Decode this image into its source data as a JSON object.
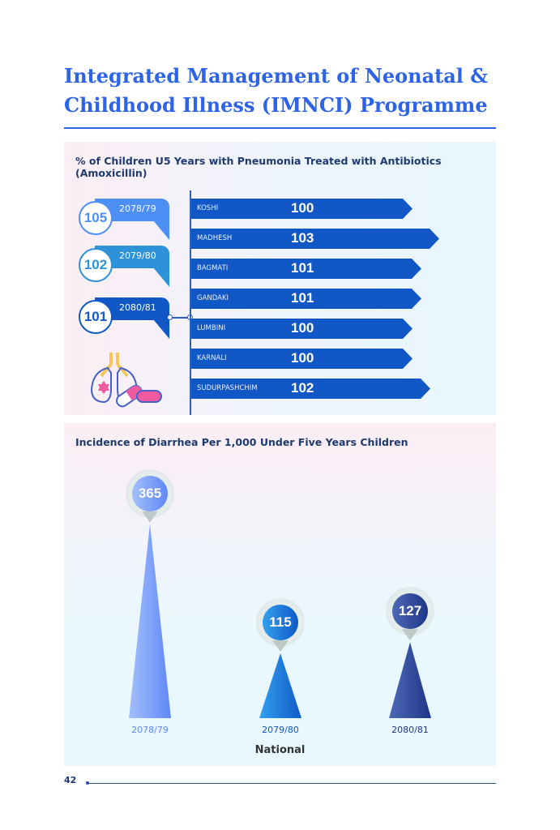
{
  "title": "Integrated Management of Neonatal & Childhood Illness (IMNCI) Programme",
  "page_number": "42",
  "chart_data": [
    {
      "type": "bar",
      "title": "% of Children U5 Years with Pneumonia Treated with Antibiotics (Amoxicillin)",
      "national": [
        {
          "year": "2078/79",
          "value": "105",
          "color": "#4d8ff5"
        },
        {
          "year": "2079/80",
          "value": "102",
          "color": "#2e92d8"
        },
        {
          "year": "2080/81",
          "value": "101",
          "color": "#1158c6"
        }
      ],
      "categories": [
        "KOSHI",
        "MADHESH",
        "BAGMATI",
        "GANDAKI",
        "LUMBINI",
        "KARNALI",
        "SUDURPASHCHIM"
      ],
      "values": [
        100,
        103,
        101,
        101,
        100,
        100,
        102
      ],
      "bar_color": "#1158c6"
    },
    {
      "type": "bar",
      "title": "Incidence of Diarrhea Per 1,000 Under Five Years Children",
      "categories": [
        "2078/79",
        "2079/80",
        "2080/81"
      ],
      "values": [
        365,
        115,
        127
      ],
      "xlabel": "National",
      "colors": [
        [
          "#a3c0fb",
          "#5f87f8"
        ],
        [
          "#33a0ef",
          "#0f5ac6"
        ],
        [
          "#4d69b5",
          "#1f3688"
        ]
      ]
    }
  ]
}
